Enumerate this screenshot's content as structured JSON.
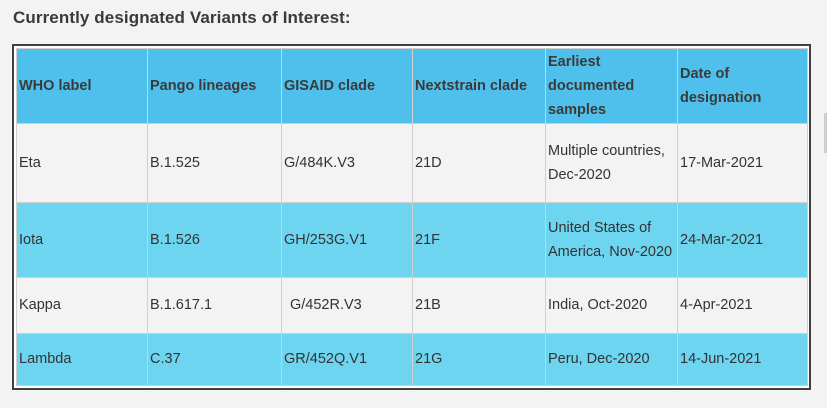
{
  "heading": "Currently designated Variants of Interest:",
  "columns": [
    "WHO label",
    "Pango lineages",
    "GISAID clade",
    "Nextstrain clade",
    "Earliest documented samples",
    "Date of designation"
  ],
  "rows": [
    {
      "who": "Eta",
      "pango": "B.1.525",
      "gisaid": "G/484K.V3",
      "nextstrain": "21D",
      "samples": "Multiple countries, Dec-2020",
      "date": "17-Mar-2021"
    },
    {
      "who": "Iota",
      "pango": "B.1.526",
      "gisaid": "GH/253G.V1",
      "nextstrain": "21F",
      "samples": "United States of America, Nov-2020",
      "date": "24-Mar-2021"
    },
    {
      "who": "Kappa",
      "pango": "B.1.617.1",
      "gisaid": "G/452R.V3",
      "nextstrain": "21B",
      "samples": "India, Oct-2020",
      "date": "4-Apr-2021"
    },
    {
      "who": "Lambda",
      "pango": "C.37",
      "gisaid": "GR/452Q.V1",
      "nextstrain": "21G",
      "samples": "Peru, Dec-2020",
      "date": "14-Jun-2021"
    }
  ],
  "colors": {
    "header_bg": "#4fc0ec",
    "row_highlight": "#6dd5ef",
    "row_plain": "#f3f3f3",
    "frame_border": "#3f3f3f"
  }
}
